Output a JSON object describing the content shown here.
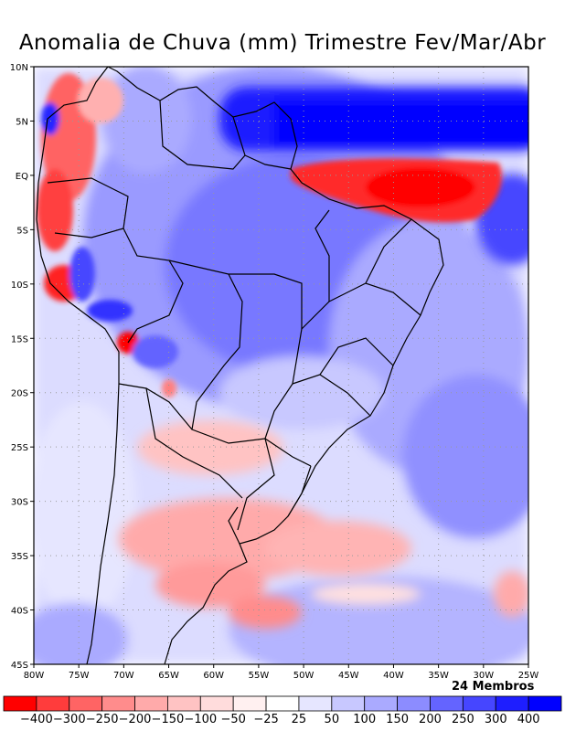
{
  "title": "Anomalia de Chuva (mm) Trimestre Fev/Mar/Abr",
  "members_label": "24 Membros",
  "lat_labels": [
    "10N",
    "5N",
    "EQ",
    "5S",
    "10S",
    "15S",
    "20S",
    "25S",
    "30S",
    "35S",
    "40S",
    "45S"
  ],
  "lon_labels": [
    "80W",
    "75W",
    "70W",
    "65W",
    "60W",
    "55W",
    "50W",
    "45W",
    "40W",
    "35W",
    "30W",
    "25W"
  ],
  "colorbar": {
    "labels": [
      "-400",
      "-300",
      "-250",
      "-200",
      "-150",
      "-100",
      "-50",
      "-25",
      "25",
      "50",
      "100",
      "150",
      "200",
      "250",
      "300",
      "400"
    ],
    "colors": [
      "#ff0000",
      "#ff3c3c",
      "#ff6464",
      "#ff8c8c",
      "#ffaaaa",
      "#ffc3c3",
      "#ffdcdc",
      "#fff0f0",
      "#ffffff",
      "#e6e6ff",
      "#c8c8ff",
      "#aaaaff",
      "#8c8cff",
      "#6464ff",
      "#4646ff",
      "#1e1eff",
      "#0000ff"
    ]
  },
  "palette": {
    "frame": "#000000",
    "grid": "#999999"
  }
}
